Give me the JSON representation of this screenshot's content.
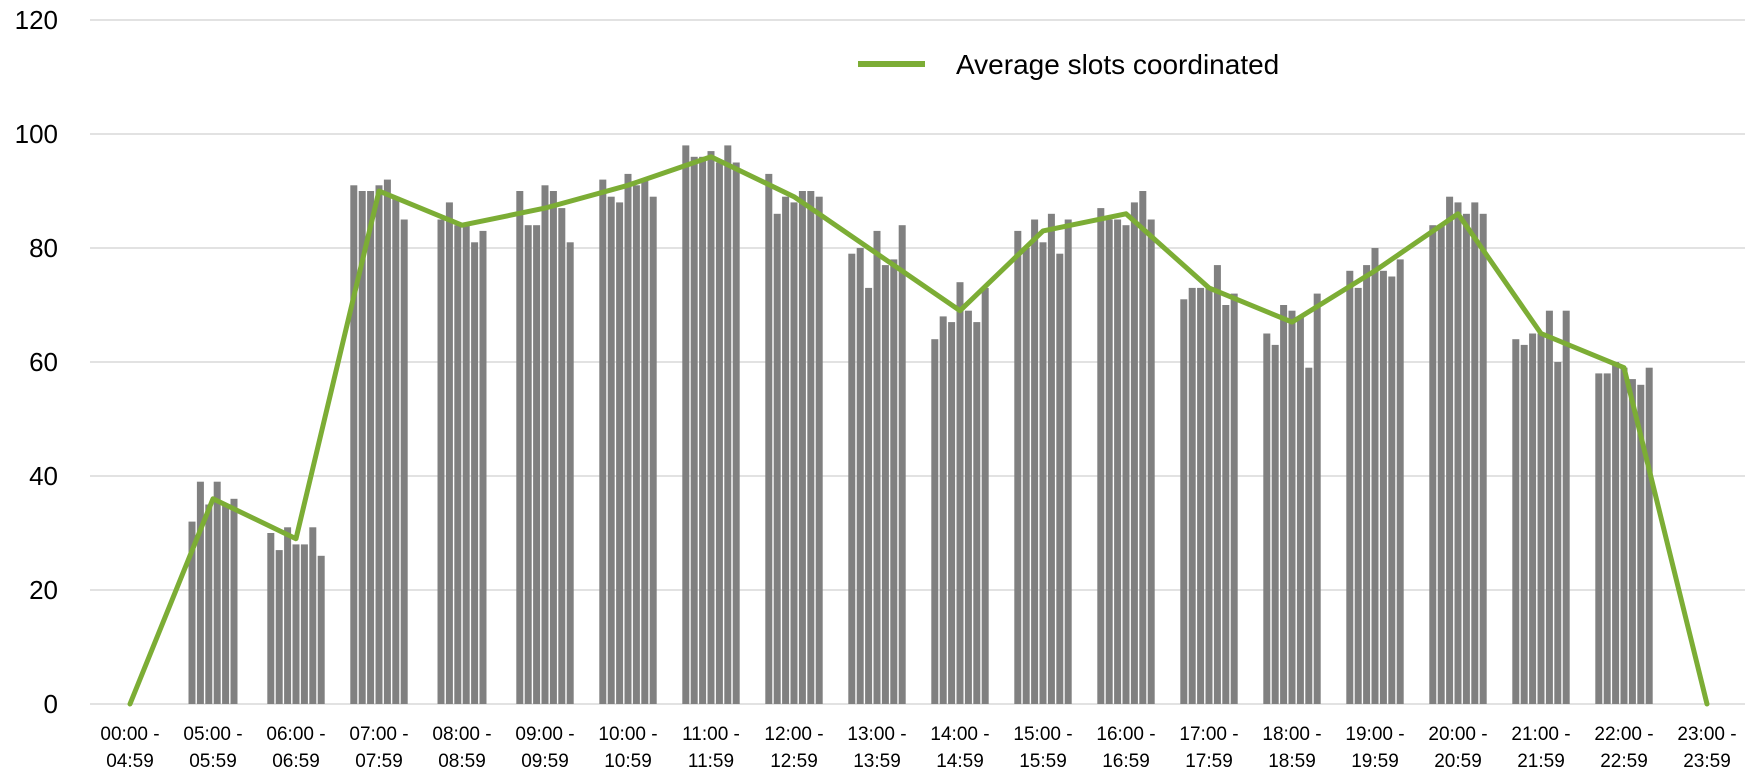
{
  "chart_data": {
    "type": "bar",
    "title": "",
    "xlabel": "",
    "ylabel": "",
    "ylim": [
      0,
      120
    ],
    "yticks": [
      0,
      20,
      40,
      60,
      80,
      100,
      120
    ],
    "grid": true,
    "legend": {
      "placement": "top-center"
    },
    "categories": [
      "00:00 - 04:59",
      "05:00 - 05:59",
      "06:00 - 06:59",
      "07:00 - 07:59",
      "08:00 - 08:59",
      "09:00 - 09:59",
      "10:00 - 10:59",
      "11:00 - 11:59",
      "12:00 - 12:59",
      "13:00 - 13:59",
      "14:00 - 14:59",
      "15:00 - 15:59",
      "16:00 - 16:59",
      "17:00 - 17:59",
      "18:00 - 18:59",
      "19:00 - 19:59",
      "20:00 - 20:59",
      "21:00 - 21:59",
      "22:00 - 22:59",
      "23:00 - 23:59"
    ],
    "category_lines": [
      [
        "00:00 -",
        "04:59"
      ],
      [
        "05:00 -",
        "05:59"
      ],
      [
        "06:00 -",
        "06:59"
      ],
      [
        "07:00 -",
        "07:59"
      ],
      [
        "08:00 -",
        "08:59"
      ],
      [
        "09:00 -",
        "09:59"
      ],
      [
        "10:00 -",
        "10:59"
      ],
      [
        "11:00 -",
        "11:59"
      ],
      [
        "12:00 -",
        "12:59"
      ],
      [
        "13:00 -",
        "13:59"
      ],
      [
        "14:00 -",
        "14:59"
      ],
      [
        "15:00 -",
        "15:59"
      ],
      [
        "16:00 -",
        "16:59"
      ],
      [
        "17:00 -",
        "17:59"
      ],
      [
        "18:00 -",
        "18:59"
      ],
      [
        "19:00 -",
        "19:59"
      ],
      [
        "20:00 -",
        "20:59"
      ],
      [
        "21:00 -",
        "21:59"
      ],
      [
        "22:00 -",
        "22:59"
      ],
      [
        "23:00 -",
        "23:59"
      ]
    ],
    "bar_groups": [
      [],
      [
        32,
        39,
        35,
        39,
        35,
        36
      ],
      [
        30,
        27,
        31,
        28,
        28,
        31,
        26
      ],
      [
        91,
        90,
        90,
        91,
        92,
        89,
        85
      ],
      [
        85,
        88,
        84,
        84,
        81,
        83
      ],
      [
        90,
        84,
        84,
        91,
        90,
        87,
        81
      ],
      [
        92,
        89,
        88,
        93,
        91,
        92,
        89
      ],
      [
        98,
        96,
        96,
        97,
        95,
        98,
        95
      ],
      [
        93,
        86,
        89,
        88,
        90,
        90,
        89
      ],
      [
        79,
        80,
        73,
        83,
        77,
        78,
        84
      ],
      [
        64,
        68,
        67,
        74,
        69,
        67,
        73
      ],
      [
        83,
        80,
        85,
        81,
        86,
        79,
        85
      ],
      [
        87,
        85,
        85,
        84,
        88,
        90,
        85
      ],
      [
        71,
        73,
        73,
        73,
        77,
        70,
        72
      ],
      [
        65,
        63,
        70,
        69,
        68,
        59,
        72
      ],
      [
        76,
        73,
        77,
        80,
        76,
        75,
        78
      ],
      [
        84,
        84,
        89,
        88,
        86,
        88,
        86
      ],
      [
        64,
        63,
        65,
        65,
        69,
        60,
        69
      ],
      [
        58,
        58,
        60,
        59,
        57,
        56,
        59
      ],
      []
    ],
    "series": [
      {
        "name": "Average slots coordinated",
        "type": "line",
        "color": "#7cad35",
        "values": [
          0,
          36,
          29,
          90,
          84,
          87,
          91,
          96,
          89,
          79,
          69,
          83,
          86,
          73,
          67,
          76,
          86,
          65,
          59,
          0
        ]
      }
    ],
    "bar_color": "#808080",
    "gridline_color": "#d9d9d9"
  }
}
